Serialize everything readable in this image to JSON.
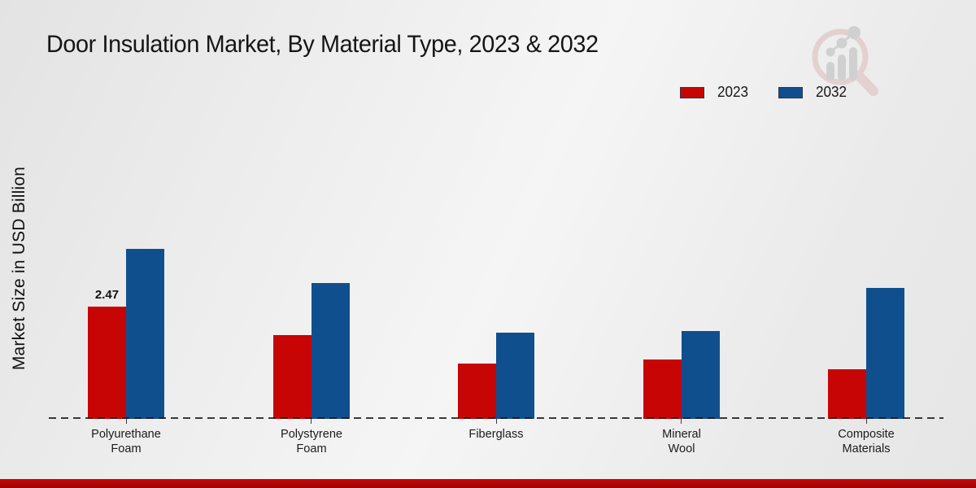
{
  "title": "Door Insulation Market, By Material Type, 2023 & 2032",
  "y_axis_label": "Market Size in USD Billion",
  "chart_data": {
    "type": "bar",
    "title": "Door Insulation Market, By Material Type, 2023 & 2032",
    "xlabel": "",
    "ylabel": "Market Size in USD Billion",
    "categories": [
      "Polyurethane Foam",
      "Polystyrene Foam",
      "Fiberglass",
      "Mineral Wool",
      "Composite Materials"
    ],
    "series": [
      {
        "name": "2023",
        "color": "#c80505",
        "values": [
          2.47,
          1.84,
          1.22,
          1.31,
          1.09
        ]
      },
      {
        "name": "2032",
        "color": "#104f8e",
        "values": [
          3.74,
          2.99,
          1.9,
          1.93,
          2.88
        ]
      }
    ],
    "annotations": [
      {
        "series_index": 0,
        "category_index": 0,
        "text": "2.47"
      }
    ],
    "ylim": [
      0,
      4.6
    ],
    "grid": false,
    "axis_ticks_visible": false,
    "legend_position": "top-right",
    "baseline_style": "dashed"
  },
  "legend_swatch_border_color": "#2d3a4d",
  "footer": {
    "bar_color_top": "#c50808",
    "bar_color_bottom": "#9e0303"
  },
  "logo": {
    "name": "magnifier-bar-chart-logo",
    "ring_color": "#e2cccc",
    "glyph_color": "#cccccc"
  }
}
